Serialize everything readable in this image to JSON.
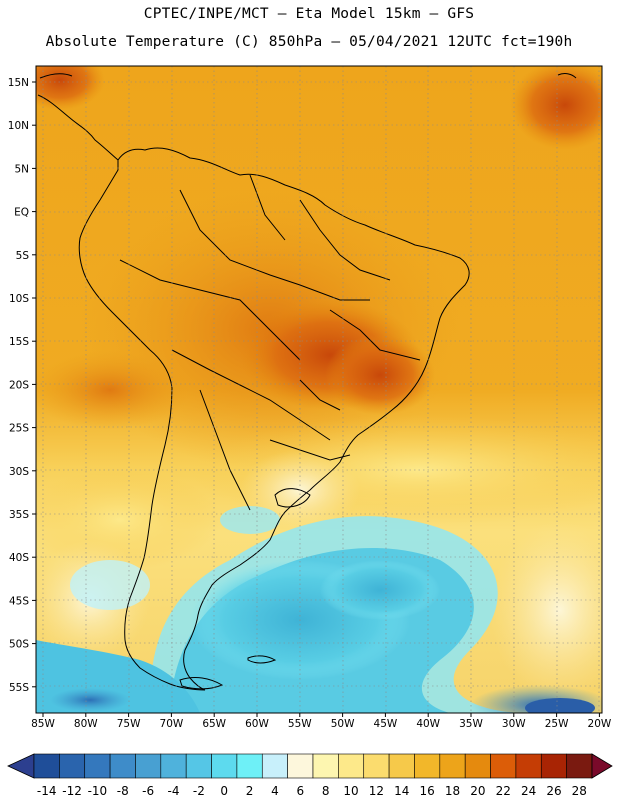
{
  "header": {
    "line1": "CPTEC/INPE/MCT –  Eta Model 15km – GFS",
    "line2": "Absolute Temperature (C) 850hPa – 05/04/2021 12UTC fct=190h"
  },
  "map": {
    "lat_labels": [
      "15N",
      "10N",
      "5N",
      "EQ",
      "5S",
      "10S",
      "15S",
      "20S",
      "25S",
      "30S",
      "35S",
      "40S",
      "45S",
      "50S",
      "55S"
    ],
    "lon_labels": [
      "85W",
      "80W",
      "75W",
      "70W",
      "65W",
      "60W",
      "55W",
      "50W",
      "45W",
      "40W",
      "35W",
      "30W",
      "25W",
      "20W"
    ]
  },
  "colorbar": {
    "levels": [
      "-14",
      "-12",
      "-10",
      "-8",
      "-6",
      "-4",
      "-2",
      "0",
      "2",
      "4",
      "6",
      "8",
      "10",
      "12",
      "14",
      "16",
      "18",
      "20",
      "22",
      "24",
      "26",
      "28"
    ],
    "colors": [
      "#1f4e99",
      "#2a64ad",
      "#3478bd",
      "#3e8cc9",
      "#48a0d2",
      "#4fb2dc",
      "#55c6e6",
      "#5ddaee",
      "#6ef0f7",
      "#c8f0fb",
      "#fdf7dc",
      "#fdf6b0",
      "#fde98a",
      "#fbdc6e",
      "#f6c94a",
      "#f2b72a",
      "#eda41a",
      "#e58a0e",
      "#dc5d08",
      "#c53d05",
      "#a82404",
      "#7a1a10"
    ],
    "under_color": "#2c3f8f",
    "over_color": "#7a0a2a"
  }
}
